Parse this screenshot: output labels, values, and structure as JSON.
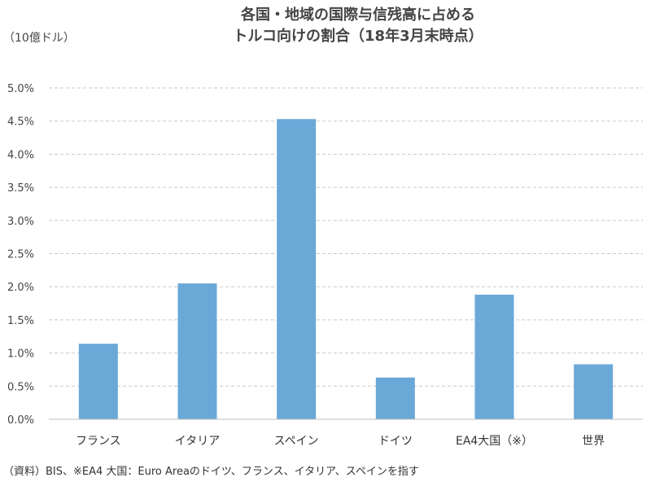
{
  "chart_data": {
    "type": "bar",
    "title": [
      "各国・地域の国際与信残高に占める",
      "トルコ向けの割合（18年3月末時点）"
    ],
    "unit_label": "（10億ドル）",
    "categories": [
      "フランス",
      "イタリア",
      "スペイン",
      "ドイツ",
      "EA4大国（※）",
      "世界"
    ],
    "values": [
      1.14,
      2.05,
      4.53,
      0.63,
      1.88,
      0.83
    ],
    "value_unit": "%",
    "ylim": [
      0,
      5.0
    ],
    "yticks": [
      "0.0%",
      "0.5%",
      "1.0%",
      "1.5%",
      "2.0%",
      "2.5%",
      "3.0%",
      "3.5%",
      "4.0%",
      "4.5%",
      "5.0%"
    ],
    "grid": true,
    "bar_color": "#6aa8d8",
    "note": "（資料）BIS、※EA4 大国：Euro Areaのドイツ、フランス、イタリア、スペインを指す"
  }
}
